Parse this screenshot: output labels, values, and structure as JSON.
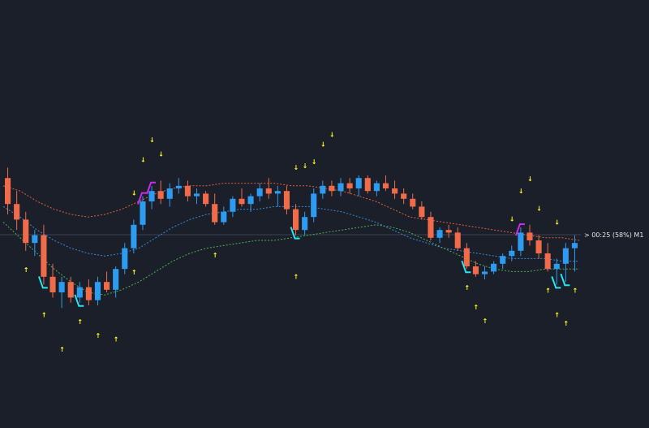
{
  "chart_data": {
    "type": "candlestick",
    "title": "",
    "xlabel": "",
    "ylabel": "",
    "timeframe": "M1",
    "countdown_label": "> 00:25 (58%) M1",
    "grid": false,
    "colors": {
      "background": "#1b1f2a",
      "up": "#2d9bf0",
      "down": "#f06b4a",
      "band_upper": "#e0603c",
      "band_mid": "#3a86d6",
      "band_lower": "#4caf50",
      "signal_magenta": "#d028f0",
      "signal_cyan": "#28e6f0",
      "arrow": "#ffff1a"
    },
    "ylim": [
      0,
      100
    ],
    "candles": [
      {
        "t": 1,
        "o": 69,
        "h": 73,
        "l": 55,
        "c": 59
      },
      {
        "t": 2,
        "o": 59,
        "h": 64,
        "l": 49,
        "c": 53
      },
      {
        "t": 3,
        "o": 53,
        "h": 56,
        "l": 41,
        "c": 44
      },
      {
        "t": 4,
        "o": 44,
        "h": 49,
        "l": 39,
        "c": 47
      },
      {
        "t": 5,
        "o": 47,
        "h": 51,
        "l": 28,
        "c": 31
      },
      {
        "t": 6,
        "o": 31,
        "h": 36,
        "l": 23,
        "c": 25
      },
      {
        "t": 7,
        "o": 25,
        "h": 31,
        "l": 19,
        "c": 29
      },
      {
        "t": 8,
        "o": 29,
        "h": 31,
        "l": 21,
        "c": 23
      },
      {
        "t": 9,
        "o": 23,
        "h": 29,
        "l": 21,
        "c": 27
      },
      {
        "t": 10,
        "o": 27,
        "h": 30,
        "l": 20,
        "c": 22
      },
      {
        "t": 11,
        "o": 22,
        "h": 31,
        "l": 20,
        "c": 29
      },
      {
        "t": 12,
        "o": 29,
        "h": 33,
        "l": 25,
        "c": 26
      },
      {
        "t": 13,
        "o": 26,
        "h": 35,
        "l": 23,
        "c": 34
      },
      {
        "t": 14,
        "o": 34,
        "h": 44,
        "l": 32,
        "c": 42
      },
      {
        "t": 15,
        "o": 42,
        "h": 53,
        "l": 40,
        "c": 51
      },
      {
        "t": 16,
        "o": 51,
        "h": 62,
        "l": 49,
        "c": 60
      },
      {
        "t": 17,
        "o": 60,
        "h": 66,
        "l": 57,
        "c": 64
      },
      {
        "t": 18,
        "o": 64,
        "h": 68,
        "l": 59,
        "c": 61
      },
      {
        "t": 19,
        "o": 61,
        "h": 67,
        "l": 58,
        "c": 65
      },
      {
        "t": 20,
        "o": 65,
        "h": 69,
        "l": 63,
        "c": 66
      },
      {
        "t": 21,
        "o": 66,
        "h": 68,
        "l": 60,
        "c": 62
      },
      {
        "t": 22,
        "o": 62,
        "h": 65,
        "l": 59,
        "c": 63
      },
      {
        "t": 23,
        "o": 63,
        "h": 64,
        "l": 58,
        "c": 59
      },
      {
        "t": 24,
        "o": 59,
        "h": 63,
        "l": 51,
        "c": 52
      },
      {
        "t": 25,
        "o": 52,
        "h": 58,
        "l": 51,
        "c": 56
      },
      {
        "t": 26,
        "o": 56,
        "h": 62,
        "l": 54,
        "c": 61
      },
      {
        "t": 27,
        "o": 61,
        "h": 65,
        "l": 58,
        "c": 59
      },
      {
        "t": 28,
        "o": 59,
        "h": 63,
        "l": 56,
        "c": 62
      },
      {
        "t": 29,
        "o": 62,
        "h": 67,
        "l": 60,
        "c": 65
      },
      {
        "t": 30,
        "o": 65,
        "h": 69,
        "l": 61,
        "c": 63
      },
      {
        "t": 31,
        "o": 63,
        "h": 66,
        "l": 58,
        "c": 64
      },
      {
        "t": 32,
        "o": 64,
        "h": 66,
        "l": 55,
        "c": 57
      },
      {
        "t": 33,
        "o": 57,
        "h": 59,
        "l": 47,
        "c": 49
      },
      {
        "t": 34,
        "o": 49,
        "h": 56,
        "l": 47,
        "c": 54
      },
      {
        "t": 35,
        "o": 54,
        "h": 65,
        "l": 52,
        "c": 63
      },
      {
        "t": 36,
        "o": 63,
        "h": 68,
        "l": 61,
        "c": 66
      },
      {
        "t": 37,
        "o": 66,
        "h": 68,
        "l": 62,
        "c": 64
      },
      {
        "t": 38,
        "o": 64,
        "h": 69,
        "l": 62,
        "c": 67
      },
      {
        "t": 39,
        "o": 67,
        "h": 69,
        "l": 63,
        "c": 65
      },
      {
        "t": 40,
        "o": 65,
        "h": 70,
        "l": 62,
        "c": 69
      },
      {
        "t": 41,
        "o": 69,
        "h": 70,
        "l": 63,
        "c": 64
      },
      {
        "t": 42,
        "o": 64,
        "h": 68,
        "l": 62,
        "c": 67
      },
      {
        "t": 43,
        "o": 67,
        "h": 70,
        "l": 64,
        "c": 65
      },
      {
        "t": 44,
        "o": 65,
        "h": 68,
        "l": 61,
        "c": 63
      },
      {
        "t": 45,
        "o": 63,
        "h": 65,
        "l": 59,
        "c": 61
      },
      {
        "t": 46,
        "o": 61,
        "h": 63,
        "l": 57,
        "c": 58
      },
      {
        "t": 47,
        "o": 58,
        "h": 60,
        "l": 53,
        "c": 54
      },
      {
        "t": 48,
        "o": 54,
        "h": 56,
        "l": 45,
        "c": 46
      },
      {
        "t": 49,
        "o": 46,
        "h": 50,
        "l": 44,
        "c": 49
      },
      {
        "t": 50,
        "o": 49,
        "h": 51,
        "l": 46,
        "c": 48
      },
      {
        "t": 51,
        "o": 48,
        "h": 50,
        "l": 41,
        "c": 42
      },
      {
        "t": 52,
        "o": 42,
        "h": 44,
        "l": 34,
        "c": 35
      },
      {
        "t": 53,
        "o": 35,
        "h": 37,
        "l": 31,
        "c": 32
      },
      {
        "t": 54,
        "o": 32,
        "h": 35,
        "l": 30,
        "c": 33
      },
      {
        "t": 55,
        "o": 33,
        "h": 37,
        "l": 32,
        "c": 36
      },
      {
        "t": 56,
        "o": 36,
        "h": 40,
        "l": 34,
        "c": 39
      },
      {
        "t": 57,
        "o": 39,
        "h": 43,
        "l": 37,
        "c": 41
      },
      {
        "t": 58,
        "o": 41,
        "h": 50,
        "l": 39,
        "c": 48
      },
      {
        "t": 59,
        "o": 48,
        "h": 51,
        "l": 43,
        "c": 45
      },
      {
        "t": 60,
        "o": 45,
        "h": 47,
        "l": 38,
        "c": 40
      },
      {
        "t": 61,
        "o": 40,
        "h": 44,
        "l": 33,
        "c": 34
      },
      {
        "t": 62,
        "o": 34,
        "h": 38,
        "l": 28,
        "c": 36
      },
      {
        "t": 63,
        "o": 36,
        "h": 44,
        "l": 29,
        "c": 42
      },
      {
        "t": 64,
        "o": 42,
        "h": 47,
        "l": 33,
        "c": 44
      }
    ],
    "bands": {
      "upper": [
        66,
        64,
        60,
        57,
        55,
        54,
        55,
        57,
        60,
        63,
        65,
        66,
        66,
        67,
        67,
        67,
        67,
        66,
        66,
        65,
        64,
        62,
        60,
        57,
        54,
        53,
        52,
        51,
        50,
        49,
        48,
        47,
        46,
        46,
        45
      ],
      "mid": [
        58,
        54,
        49,
        45,
        42,
        40,
        39,
        40,
        42,
        46,
        50,
        53,
        55,
        56,
        57,
        57,
        58,
        58,
        58,
        57,
        56,
        54,
        52,
        49,
        46,
        44,
        42,
        41,
        40,
        39,
        38,
        38,
        38,
        37,
        37
      ],
      "lower": [
        52,
        46,
        40,
        34,
        29,
        25,
        24,
        26,
        29,
        33,
        37,
        40,
        42,
        43,
        44,
        45,
        45,
        46,
        47,
        48,
        49,
        50,
        51,
        50,
        48,
        45,
        42,
        39,
        36,
        34,
        33,
        33,
        34,
        34,
        34
      ]
    },
    "arrows_up": [
      3,
      5,
      7,
      9,
      11,
      13,
      15,
      24,
      33,
      52,
      53,
      54,
      61,
      62,
      63,
      64
    ],
    "arrows_down": [
      15,
      16,
      17,
      18,
      33,
      34,
      35,
      36,
      37,
      57,
      58,
      59,
      60,
      62
    ],
    "signals": [
      {
        "t": 16,
        "type": "magenta"
      },
      {
        "t": 17,
        "type": "magenta"
      },
      {
        "t": 5,
        "type": "cyan"
      },
      {
        "t": 9,
        "type": "cyan"
      },
      {
        "t": 33,
        "type": "cyan"
      },
      {
        "t": 52,
        "type": "cyan"
      },
      {
        "t": 58,
        "type": "magenta"
      },
      {
        "t": 62,
        "type": "cyan"
      },
      {
        "t": 63,
        "type": "cyan"
      }
    ]
  }
}
